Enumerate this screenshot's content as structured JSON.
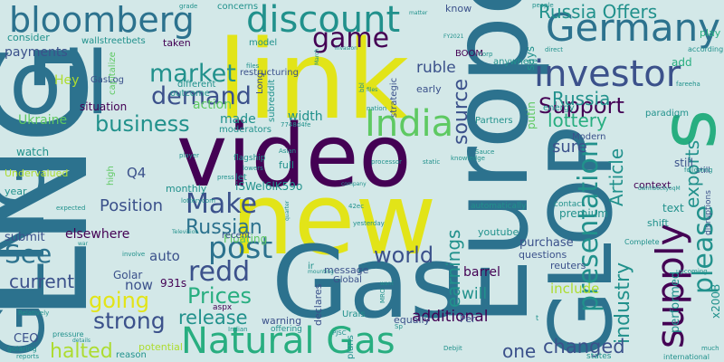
{
  "wordcloud": {
    "background": "#d3e8e8",
    "palette": {
      "p1": "#440154",
      "p2": "#3b518b",
      "p3": "#2c728e",
      "p4": "#21918c",
      "p5": "#28ae80",
      "p6": "#5ec962",
      "p7": "#addc30",
      "p8": "#e2e418"
    },
    "words": [
      {
        "text": "LNG",
        "color": "p3"
      },
      {
        "text": "link",
        "color": "p8"
      },
      {
        "text": "video",
        "color": "p1"
      },
      {
        "text": "new",
        "color": "p8"
      },
      {
        "text": "Europe",
        "color": "p3"
      },
      {
        "text": "Gas",
        "color": "p3"
      },
      {
        "text": "GLOP",
        "color": "p3"
      },
      {
        "text": "GLNG",
        "color": "p3"
      },
      {
        "text": "oil",
        "color": "p3"
      },
      {
        "text": "s",
        "color": "p5"
      },
      {
        "text": "bloomberg",
        "color": "p3"
      },
      {
        "text": "discount",
        "color": "p4"
      },
      {
        "text": "Germany",
        "color": "p3"
      },
      {
        "text": "investor",
        "color": "p2"
      },
      {
        "text": "Natural Gas",
        "color": "p5"
      },
      {
        "text": "presentation",
        "color": "p4"
      },
      {
        "text": "supply",
        "color": "p1"
      },
      {
        "text": "please",
        "color": "p4"
      },
      {
        "text": "India",
        "color": "p6"
      },
      {
        "text": "post",
        "color": "p3"
      },
      {
        "text": "game",
        "color": "p1"
      },
      {
        "text": "Russia Offers",
        "color": "p4"
      },
      {
        "text": "Support",
        "color": "p1"
      },
      {
        "text": "Make",
        "color": "p2"
      },
      {
        "text": "market",
        "color": "p4"
      },
      {
        "text": "demand",
        "color": "p2"
      },
      {
        "text": "business",
        "color": "p4"
      },
      {
        "text": "Prices",
        "color": "p5"
      },
      {
        "text": "redd",
        "color": "p2"
      },
      {
        "text": "going",
        "color": "p8"
      },
      {
        "text": "See",
        "color": "p3"
      },
      {
        "text": "strong",
        "color": "p2"
      },
      {
        "text": "release",
        "color": "p4"
      },
      {
        "text": "world",
        "color": "p2"
      },
      {
        "text": "Russian",
        "color": "p3"
      },
      {
        "text": "Russia",
        "color": "p4"
      },
      {
        "text": "industry",
        "color": "p4"
      },
      {
        "text": "earnings",
        "color": "p4"
      },
      {
        "text": "source",
        "color": "p2"
      },
      {
        "text": "lottery",
        "color": "p5"
      },
      {
        "text": "Article",
        "color": "p4"
      },
      {
        "text": "exports",
        "color": "p4"
      },
      {
        "text": "changed",
        "color": "p2"
      },
      {
        "text": "halted",
        "color": "p7"
      },
      {
        "text": "current",
        "color": "p2"
      },
      {
        "text": "Position",
        "color": "p2"
      },
      {
        "text": "ruble",
        "color": "p2"
      },
      {
        "text": "sure",
        "color": "p2"
      },
      {
        "text": "one",
        "color": "p2"
      },
      {
        "text": "will",
        "color": "p4"
      },
      {
        "text": "additional",
        "color": "p1"
      },
      {
        "text": "performed",
        "color": "p4"
      },
      {
        "text": "include",
        "color": "p7"
      },
      {
        "text": "width",
        "color": "p4"
      },
      {
        "text": "made",
        "color": "p4"
      },
      {
        "text": "Q4",
        "color": "p2"
      },
      {
        "text": "now",
        "color": "p2"
      },
      {
        "text": "auto",
        "color": "p2"
      },
      {
        "text": "payments",
        "color": "p2"
      },
      {
        "text": "situation",
        "color": "p1"
      },
      {
        "text": "Ukraine",
        "color": "p6"
      },
      {
        "text": "watch",
        "color": "p4"
      },
      {
        "text": "elsewhere",
        "color": "p1"
      },
      {
        "text": "submit",
        "color": "p2"
      },
      {
        "text": "CEO",
        "color": "p2"
      },
      {
        "text": "wallstreetbets",
        "color": "p4"
      },
      {
        "text": "consider",
        "color": "p4"
      },
      {
        "text": "action",
        "color": "p6"
      },
      {
        "text": "outcome",
        "color": "p4"
      },
      {
        "text": "different",
        "color": "p4"
      },
      {
        "text": "taken",
        "color": "p1"
      },
      {
        "text": "Hey",
        "color": "p7"
      },
      {
        "text": "concerns",
        "color": "p4"
      },
      {
        "text": "iSWel6lK59o",
        "color": "p4"
      },
      {
        "text": "x200B",
        "color": "p4"
      },
      {
        "text": "barrel",
        "color": "p1"
      },
      {
        "text": "purchase",
        "color": "p2"
      },
      {
        "text": "questions",
        "color": "p2"
      },
      {
        "text": "reuters",
        "color": "p2"
      },
      {
        "text": "youtube",
        "color": "p4"
      },
      {
        "text": "premium",
        "color": "p4"
      },
      {
        "text": "context",
        "color": "p1"
      },
      {
        "text": "text",
        "color": "p4"
      },
      {
        "text": "still",
        "color": "p2"
      },
      {
        "text": "shift",
        "color": "p4"
      },
      {
        "text": "add",
        "color": "p5"
      },
      {
        "text": "energy",
        "color": "p4"
      },
      {
        "text": "paradigm",
        "color": "p4"
      },
      {
        "text": "Modern",
        "color": "p2"
      },
      {
        "text": "Partners",
        "color": "p4"
      },
      {
        "text": "anywhere",
        "color": "p4"
      },
      {
        "text": "says",
        "color": "p4"
      },
      {
        "text": "putin",
        "color": "p6"
      },
      {
        "text": "know",
        "color": "p2"
      },
      {
        "text": "early",
        "color": "p2"
      },
      {
        "text": "BOOM",
        "color": "p1"
      },
      {
        "text": "play",
        "color": "p5"
      },
      {
        "text": "message",
        "color": "p2"
      },
      {
        "text": "Global",
        "color": "p2"
      },
      {
        "text": "declares",
        "color": "p2"
      },
      {
        "text": "Urals",
        "color": "p4"
      },
      {
        "text": "plans",
        "color": "p4"
      },
      {
        "text": "equally",
        "color": "p2"
      },
      {
        "text": "warning",
        "color": "p2"
      },
      {
        "text": "offering",
        "color": "p4"
      },
      {
        "text": "Floating",
        "color": "p6"
      },
      {
        "text": "Golar",
        "color": "p2"
      },
      {
        "text": "931s",
        "color": "p1"
      },
      {
        "text": "aspx",
        "color": "p1"
      },
      {
        "text": "potential",
        "color": "p7"
      },
      {
        "text": "reason",
        "color": "p4"
      },
      {
        "text": "Per",
        "color": "p2"
      },
      {
        "text": "flagship",
        "color": "p4"
      },
      {
        "text": "moderators",
        "color": "p4"
      },
      {
        "text": "recent",
        "color": "p2"
      },
      {
        "text": "full",
        "color": "p4"
      },
      {
        "text": "let",
        "color": "p4"
      },
      {
        "text": "monthly",
        "color": "p4"
      },
      {
        "text": "Undervalued",
        "color": "p7"
      },
      {
        "text": "year",
        "color": "p4"
      },
      {
        "text": "strategic",
        "color": "p2"
      },
      {
        "text": "restructuring",
        "color": "p2"
      },
      {
        "text": "model",
        "color": "p4"
      },
      {
        "text": "subreddit",
        "color": "p4"
      },
      {
        "text": "Long",
        "color": "p2"
      },
      {
        "text": "high",
        "color": "p6"
      },
      {
        "text": "capitalize",
        "color": "p6"
      },
      {
        "text": "GasLog",
        "color": "p2"
      },
      {
        "text": "grade",
        "color": "p4"
      },
      {
        "text": "Corp",
        "color": "p4"
      },
      {
        "text": "people",
        "color": "p4"
      },
      {
        "text": "according",
        "color": "p4"
      },
      {
        "text": "direct",
        "color": "p4"
      },
      {
        "text": "still",
        "color": "p2"
      },
      {
        "text": "disruptions",
        "color": "p2"
      },
      {
        "text": "golaring",
        "color": "p4"
      },
      {
        "text": "reports",
        "color": "p4"
      },
      {
        "text": "pressure",
        "color": "p4"
      },
      {
        "text": "Relatively",
        "color": "p4"
      },
      {
        "text": "details",
        "color": "p4"
      },
      {
        "text": "much",
        "color": "p4"
      },
      {
        "text": "international",
        "color": "p4"
      },
      {
        "text": "upcoming",
        "color": "p4"
      },
      {
        "text": "following",
        "color": "p4"
      },
      {
        "text": "states",
        "color": "p4"
      },
      {
        "text": "contact",
        "color": "p4"
      },
      {
        "text": "automatically",
        "color": "p4"
      },
      {
        "text": "yesterday",
        "color": "p4"
      },
      {
        "text": "company",
        "color": "p4"
      },
      {
        "text": "press",
        "color": "p4"
      },
      {
        "text": "lowers",
        "color": "p4"
      },
      {
        "text": "player",
        "color": "p4"
      },
      {
        "text": "processor",
        "color": "p4"
      },
      {
        "text": "static",
        "color": "p4"
      },
      {
        "text": "Sauce",
        "color": "p4"
      },
      {
        "text": "invasion",
        "color": "p4"
      },
      {
        "text": "nation",
        "color": "p4"
      },
      {
        "text": "FY2021",
        "color": "p4"
      },
      {
        "text": "lotterycom",
        "color": "p4"
      },
      {
        "text": "Television",
        "color": "p4"
      },
      {
        "text": "involve",
        "color": "p4"
      },
      {
        "text": "war",
        "color": "p4"
      },
      {
        "text": "Indian",
        "color": "p4"
      },
      {
        "text": "mounting",
        "color": "p4"
      },
      {
        "text": "PJSC",
        "color": "p4"
      },
      {
        "text": "Debjit",
        "color": "p4"
      },
      {
        "text": "want",
        "color": "p4"
      },
      {
        "text": "dwhhb6ckyoqM",
        "color": "p4"
      },
      {
        "text": "ir",
        "color": "p4"
      },
      {
        "text": "42ec",
        "color": "p4"
      },
      {
        "text": "files",
        "color": "p4"
      },
      {
        "text": "Asian",
        "color": "p4"
      },
      {
        "text": "knowledge",
        "color": "p4"
      },
      {
        "text": "files",
        "color": "p4"
      },
      {
        "text": "MRO",
        "color": "p4"
      },
      {
        "text": "bbl",
        "color": "p4"
      },
      {
        "text": "March",
        "color": "p4"
      },
      {
        "text": "t",
        "color": "p4"
      },
      {
        "text": "Sp",
        "color": "p4"
      },
      {
        "text": "quarter",
        "color": "p4"
      },
      {
        "text": "matter",
        "color": "p4"
      },
      {
        "text": "expected",
        "color": "p4"
      },
      {
        "text": "Complete",
        "color": "p4"
      },
      {
        "text": "fareeha",
        "color": "p4"
      },
      {
        "text": "7748d4fe",
        "color": "p4"
      }
    ]
  }
}
